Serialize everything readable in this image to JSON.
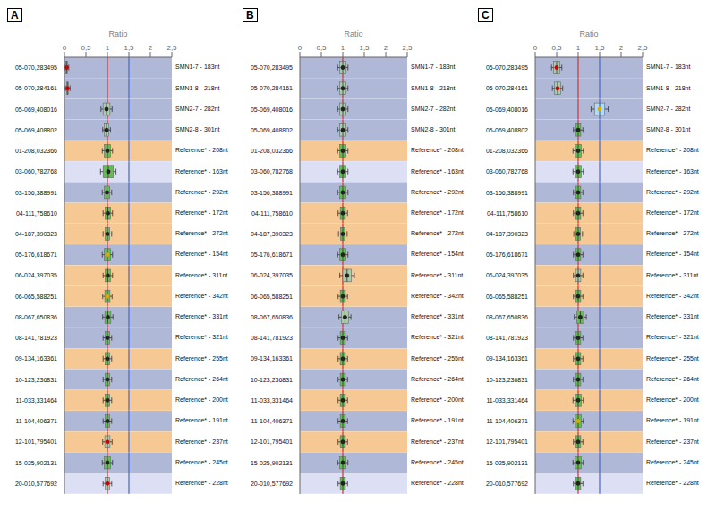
{
  "chart_data": [
    {
      "type": "box",
      "title": "A",
      "x_label": "Ratio",
      "orientation": "horizontal",
      "categories": [
        "05-070,283495",
        "05-070,284161",
        "05-069,408016",
        "05-069,408802",
        "01-208,032366",
        "03-060,782768",
        "03-156,388991",
        "04-111,758610",
        "04-187,390323",
        "05-176,618671",
        "06-024,397035",
        "06-065,588251",
        "08-067,650836",
        "08-141,781923",
        "09-134,163361",
        "10-123,236831",
        "11-033,331464",
        "11-104,406371",
        "12-101,795401",
        "15-025,902131",
        "20-010,577692"
      ],
      "probe_labels": [
        "SMN1-7 - 183nt",
        "SMN1-8 - 218nt",
        "SMN2-7 - 282nt",
        "SMN2-8 - 301nt",
        "Reference* - 208nt",
        "Reference* - 163nt",
        "Reference* - 292nt",
        "Reference* - 172nt",
        "Reference* - 272nt",
        "Reference* - 154nt",
        "Reference* - 311nt",
        "Reference* - 342nt",
        "Reference* - 331nt",
        "Reference* - 321nt",
        "Reference* - 255nt",
        "Reference* - 264nt",
        "Reference* - 200nt",
        "Reference* - 191nt",
        "Reference* - 237nt",
        "Reference* - 245nt",
        "Reference* - 228nt"
      ],
      "values": [
        0.05,
        0.07,
        0.98,
        0.98,
        1.0,
        1.02,
        0.99,
        1.01,
        1.0,
        1.0,
        1.01,
        1.0,
        1.01,
        1.0,
        1.0,
        1.0,
        1.0,
        1.0,
        1.0,
        1.0,
        1.0
      ],
      "box_low": [
        0.03,
        0.05,
        0.9,
        0.93,
        0.93,
        0.9,
        0.93,
        0.95,
        0.95,
        0.93,
        0.95,
        0.94,
        0.94,
        0.95,
        0.95,
        0.95,
        0.95,
        0.95,
        0.94,
        0.93,
        0.95
      ],
      "box_high": [
        0.07,
        0.09,
        1.06,
        1.03,
        1.07,
        1.14,
        1.05,
        1.07,
        1.05,
        1.07,
        1.07,
        1.06,
        1.08,
        1.05,
        1.05,
        1.05,
        1.05,
        1.05,
        1.06,
        1.07,
        1.05
      ],
      "whisker_low": [
        0.0,
        0.02,
        0.85,
        0.89,
        0.88,
        0.84,
        0.88,
        0.9,
        0.9,
        0.88,
        0.9,
        0.89,
        0.89,
        0.9,
        0.9,
        0.9,
        0.9,
        0.9,
        0.89,
        0.88,
        0.9
      ],
      "whisker_high": [
        0.1,
        0.13,
        1.11,
        1.07,
        1.12,
        1.2,
        1.1,
        1.12,
        1.1,
        1.12,
        1.12,
        1.11,
        1.13,
        1.1,
        1.1,
        1.1,
        1.1,
        1.1,
        1.11,
        1.12,
        1.1
      ],
      "colors": [
        "#cc0000",
        "#cc0000",
        "#222222",
        "#222222",
        "#222222",
        "#222222",
        "#222222",
        "#222222",
        "#222222",
        "#ddaa00",
        "#222222",
        "#ddaa00",
        "#222222",
        "#222222",
        "#222222",
        "#222222",
        "#222222",
        "#222222",
        "#cc0000",
        "#222222",
        "#cc0000"
      ],
      "box_colors": [
        "#aaccaa",
        "#aaccaa",
        "#aaccaa",
        "#aaccaa",
        "#66bb55",
        "#66bb55",
        "#66bb55",
        "#66bb55",
        "#66bb55",
        "#66bb55",
        "#66bb55",
        "#66bb55",
        "#66bb55",
        "#66bb55",
        "#66bb55",
        "#66bb55",
        "#66bb55",
        "#66bb55",
        "#aaccaa",
        "#66bb55",
        "#aaccaa"
      ],
      "row_colors": [
        "#b0b8d8",
        "#b0b8d8",
        "#b0b8d8",
        "#b0b8d8",
        "#f5c894",
        "#dddff5",
        "#b0b8d8",
        "#f5c894",
        "#f5c894",
        "#b0b8d8",
        "#f5c894",
        "#f5c894",
        "#b0b8d8",
        "#b0b8d8",
        "#f5c894",
        "#b0b8d8",
        "#f5c894",
        "#b0b8d8",
        "#f5c894",
        "#b0b8d8",
        "#dddff5"
      ],
      "reference_lines": [
        {
          "value": 1.0,
          "color": "#cc3333"
        },
        {
          "value": 1.5,
          "color": "#4466cc"
        }
      ],
      "xlim": [
        0.0,
        2.5
      ],
      "xticks": [
        0,
        {
          "value": 0.5,
          "label": "0,5"
        },
        1,
        {
          "value": 1.5,
          "label": "1,5"
        },
        2,
        {
          "value": 2.5,
          "label": "2,5"
        }
      ]
    },
    {
      "type": "box",
      "title": "B",
      "x_label": "Ratio",
      "orientation": "horizontal",
      "categories": [
        "05-070,283495",
        "05-070,284161",
        "05-069,408016",
        "05-069,408802",
        "01-208,032366",
        "03-060,782768",
        "03-156,388991",
        "04-111,758610",
        "04-187,390323",
        "05-176,618671",
        "06-024,397035",
        "06-065,588251",
        "08-067,650836",
        "08-141,781923",
        "09-134,163361",
        "10-123,236831",
        "11-033,331464",
        "11-104,406371",
        "12-101,795401",
        "15-025,902131",
        "20-010,577692"
      ],
      "probe_labels": [
        "SMN1-7 - 183nt",
        "SMN1-8 - 218nt",
        "SMN2-7 - 282nt",
        "SMN2-8 - 301nt",
        "Reference* - 208nt",
        "Reference* - 163nt",
        "Reference* - 292nt",
        "Reference* - 172nt",
        "Reference* - 272nt",
        "Reference* - 154nt",
        "Reference* - 311nt",
        "Reference* - 342nt",
        "Reference* - 331nt",
        "Reference* - 321nt",
        "Reference* - 255nt",
        "Reference* - 264nt",
        "Reference* - 200nt",
        "Reference* - 191nt",
        "Reference* - 237nt",
        "Reference* - 245nt",
        "Reference* - 228nt"
      ],
      "values": [
        1.0,
        1.0,
        1.0,
        1.0,
        1.0,
        1.0,
        1.0,
        1.0,
        1.0,
        1.0,
        1.1,
        1.0,
        1.05,
        1.0,
        1.0,
        1.0,
        1.0,
        1.0,
        1.0,
        1.0,
        1.0
      ],
      "box_low": [
        0.93,
        0.93,
        0.93,
        0.93,
        0.93,
        0.93,
        0.93,
        0.94,
        0.95,
        0.93,
        1.0,
        0.94,
        0.97,
        0.94,
        0.94,
        0.94,
        0.94,
        0.94,
        0.94,
        0.93,
        0.94
      ],
      "box_high": [
        1.07,
        1.07,
        1.07,
        1.07,
        1.07,
        1.07,
        1.07,
        1.06,
        1.05,
        1.07,
        1.2,
        1.06,
        1.13,
        1.06,
        1.06,
        1.06,
        1.06,
        1.06,
        1.06,
        1.07,
        1.06
      ],
      "whisker_low": [
        0.88,
        0.88,
        0.88,
        0.88,
        0.88,
        0.88,
        0.88,
        0.89,
        0.9,
        0.88,
        0.93,
        0.89,
        0.91,
        0.89,
        0.89,
        0.89,
        0.89,
        0.89,
        0.89,
        0.88,
        0.89
      ],
      "whisker_high": [
        1.12,
        1.12,
        1.12,
        1.12,
        1.12,
        1.12,
        1.12,
        1.11,
        1.1,
        1.12,
        1.27,
        1.11,
        1.19,
        1.11,
        1.11,
        1.11,
        1.11,
        1.11,
        1.11,
        1.12,
        1.11
      ],
      "colors": [
        "#222222",
        "#222222",
        "#222222",
        "#222222",
        "#222222",
        "#222222",
        "#222222",
        "#222222",
        "#222222",
        "#222222",
        "#222222",
        "#222222",
        "#222222",
        "#222222",
        "#222222",
        "#222222",
        "#222222",
        "#222222",
        "#222222",
        "#222222",
        "#222222"
      ],
      "box_colors": [
        "#aaccaa",
        "#aaccaa",
        "#aaccaa",
        "#aaccaa",
        "#66bb55",
        "#66bb55",
        "#66bb55",
        "#66bb55",
        "#66bb55",
        "#66bb55",
        "#aaccaa",
        "#66bb55",
        "#aaccaa",
        "#66bb55",
        "#66bb55",
        "#66bb55",
        "#66bb55",
        "#66bb55",
        "#66bb55",
        "#66bb55",
        "#66bb55"
      ],
      "row_colors": [
        "#b0b8d8",
        "#b0b8d8",
        "#b0b8d8",
        "#b0b8d8",
        "#f5c894",
        "#dddff5",
        "#b0b8d8",
        "#f5c894",
        "#f5c894",
        "#b0b8d8",
        "#f5c894",
        "#f5c894",
        "#b0b8d8",
        "#b0b8d8",
        "#f5c894",
        "#b0b8d8",
        "#f5c894",
        "#b0b8d8",
        "#f5c894",
        "#b0b8d8",
        "#dddff5"
      ],
      "reference_lines": [
        {
          "value": 1.0,
          "color": "#cc3333"
        }
      ],
      "xlim": [
        0.0,
        2.5
      ],
      "xticks": [
        0,
        {
          "value": 0.5,
          "label": "0,5"
        },
        1,
        {
          "value": 1.5,
          "label": "1,5"
        },
        2,
        {
          "value": 2.5,
          "label": "2,5"
        }
      ]
    },
    {
      "type": "box",
      "title": "C",
      "x_label": "Ratio",
      "orientation": "horizontal",
      "categories": [
        "05-070,283495",
        "05-070,284161",
        "05-069,408016",
        "05-069,408802",
        "01-208,032366",
        "03-060,782768",
        "03-156,388991",
        "04-111,758610",
        "04-187,390323",
        "05-176,618671",
        "06-024,397035",
        "06-065,588251",
        "08-067,650836",
        "08-141,781923",
        "09-134,163361",
        "10-123,236831",
        "11-033,331464",
        "11-104,406371",
        "12-101,795401",
        "15-025,902131",
        "20-010,577692"
      ],
      "probe_labels": [
        "SMN1-7 - 183nt",
        "SMN1-8 - 218nt",
        "SMN2-7 - 282nt",
        "SMN2-8 - 301nt",
        "Reference* - 208nt",
        "Reference* - 163nt",
        "Reference* - 292nt",
        "Reference* - 172nt",
        "Reference* - 272nt",
        "Reference* - 154nt",
        "Reference* - 311nt",
        "Reference* - 342nt",
        "Reference* - 331nt",
        "Reference* - 321nt",
        "Reference* - 255nt",
        "Reference* - 264nt",
        "Reference* - 200nt",
        "Reference* - 191nt",
        "Reference* - 237nt",
        "Reference* - 245nt",
        "Reference* - 228nt"
      ],
      "values": [
        0.5,
        0.52,
        1.5,
        1.0,
        1.0,
        1.0,
        1.0,
        1.0,
        1.0,
        1.0,
        1.0,
        1.0,
        1.05,
        1.0,
        1.0,
        1.0,
        1.0,
        1.0,
        1.0,
        1.0,
        1.0
      ],
      "box_low": [
        0.43,
        0.45,
        1.38,
        0.94,
        0.93,
        0.93,
        0.94,
        0.94,
        0.95,
        0.94,
        0.94,
        0.94,
        0.97,
        0.94,
        0.94,
        0.94,
        0.93,
        0.93,
        0.94,
        0.93,
        0.94
      ],
      "box_high": [
        0.57,
        0.59,
        1.62,
        1.06,
        1.07,
        1.07,
        1.06,
        1.06,
        1.05,
        1.06,
        1.06,
        1.06,
        1.13,
        1.06,
        1.06,
        1.06,
        1.07,
        1.07,
        1.06,
        1.07,
        1.06
      ],
      "whisker_low": [
        0.38,
        0.4,
        1.3,
        0.89,
        0.88,
        0.88,
        0.89,
        0.89,
        0.9,
        0.89,
        0.89,
        0.89,
        0.91,
        0.89,
        0.89,
        0.89,
        0.88,
        0.88,
        0.89,
        0.88,
        0.89
      ],
      "whisker_high": [
        0.62,
        0.64,
        1.7,
        1.11,
        1.12,
        1.12,
        1.11,
        1.11,
        1.1,
        1.11,
        1.11,
        1.11,
        1.19,
        1.11,
        1.11,
        1.11,
        1.12,
        1.12,
        1.11,
        1.12,
        1.11
      ],
      "colors": [
        "#cc0000",
        "#cc0000",
        "#ddaa00",
        "#222222",
        "#222222",
        "#222222",
        "#222222",
        "#222222",
        "#222222",
        "#222222",
        "#222222",
        "#222222",
        "#222222",
        "#222222",
        "#222222",
        "#222222",
        "#222222",
        "#ddaa00",
        "#222222",
        "#222222",
        "#222222"
      ],
      "box_colors": [
        "#aaccaa",
        "#aaccaa",
        "#aaddff",
        "#66bb55",
        "#66bb55",
        "#66bb55",
        "#66bb55",
        "#66bb55",
        "#66bb55",
        "#66bb55",
        "#aaccaa",
        "#66bb55",
        "#66bb55",
        "#66bb55",
        "#66bb55",
        "#66bb55",
        "#66bb55",
        "#66bb55",
        "#66bb55",
        "#66bb55",
        "#66bb55"
      ],
      "row_colors": [
        "#b0b8d8",
        "#b0b8d8",
        "#b0b8d8",
        "#b0b8d8",
        "#f5c894",
        "#dddff5",
        "#b0b8d8",
        "#f5c894",
        "#f5c894",
        "#b0b8d8",
        "#f5c894",
        "#f5c894",
        "#b0b8d8",
        "#b0b8d8",
        "#f5c894",
        "#b0b8d8",
        "#f5c894",
        "#b0b8d8",
        "#f5c894",
        "#b0b8d8",
        "#dddff5"
      ],
      "reference_lines": [
        {
          "value": 1.0,
          "color": "#cc3333"
        },
        {
          "value": 1.5,
          "color": "#4466cc"
        }
      ],
      "xlim": [
        0.0,
        2.5
      ],
      "xticks": [
        0,
        {
          "value": 0.5,
          "label": "0,5"
        },
        1,
        {
          "value": 1.5,
          "label": "1,5"
        },
        2,
        {
          "value": 2.5,
          "label": "2,5"
        }
      ]
    }
  ]
}
